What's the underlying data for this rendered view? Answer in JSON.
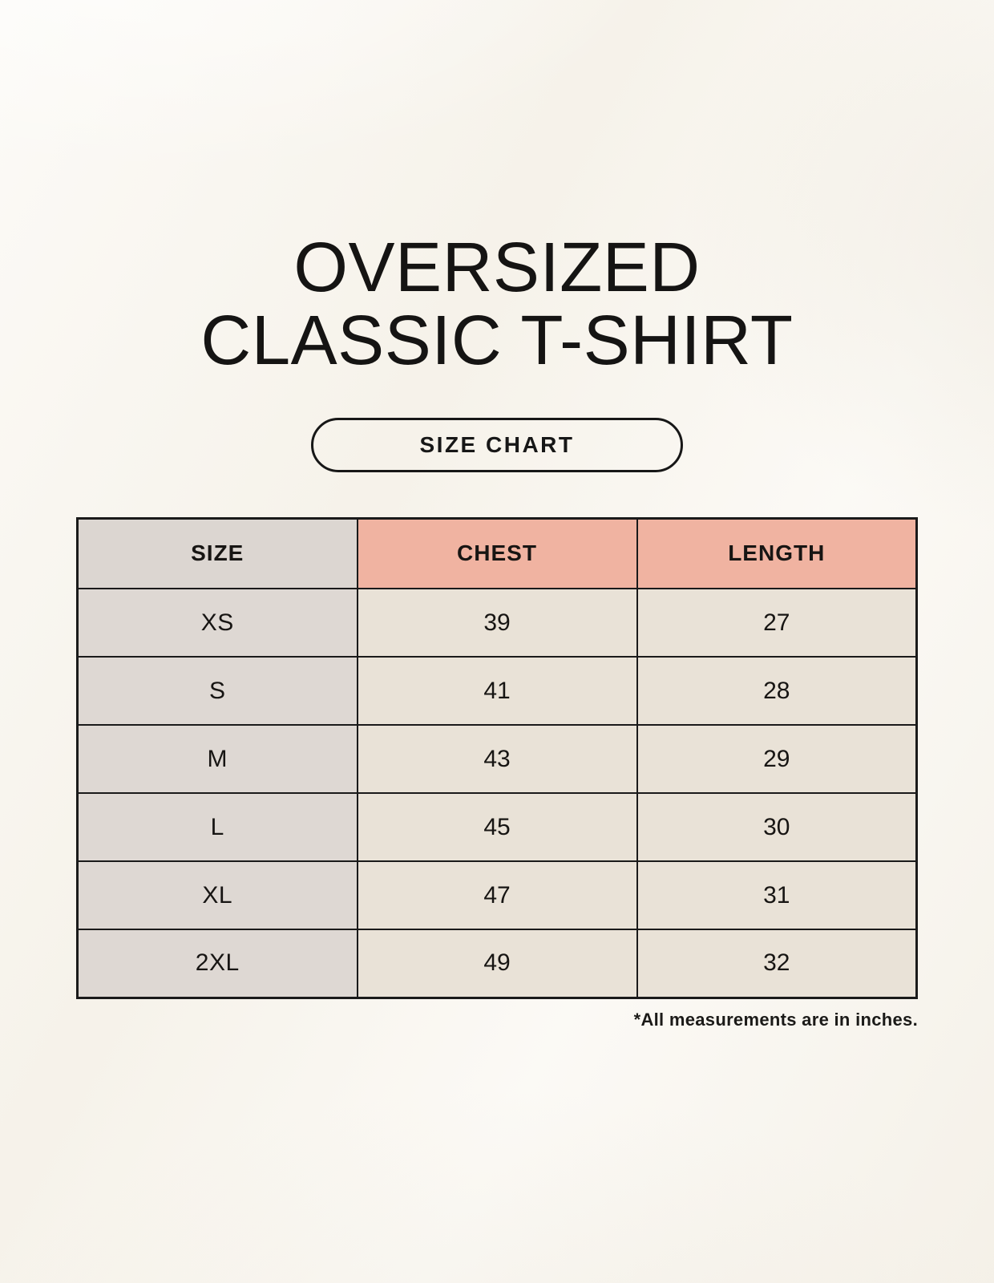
{
  "page": {
    "title_line1": "OVERSIZED",
    "title_line2": "CLASSIC T-SHIRT",
    "size_chart_label": "SIZE CHART",
    "footnote": "*All measurements are in inches."
  },
  "colors": {
    "background": "#f9f6ef",
    "header_size_bg": "#dcd6d1",
    "header_measure_bg": "#f0b3a1",
    "body_size_col_bg": "#ded8d3",
    "body_value_cell_bg": "#e9e2d7",
    "table_border": "#1a1a1a",
    "text": "#171513"
  },
  "chart_data": {
    "type": "table",
    "title": "OVERSIZED CLASSIC T-SHIRT — SIZE CHART",
    "columns": [
      "SIZE",
      "CHEST",
      "LENGTH"
    ],
    "units": "inches",
    "rows": [
      {
        "size": "XS",
        "chest": 39,
        "length": 27
      },
      {
        "size": "S",
        "chest": 41,
        "length": 28
      },
      {
        "size": "M",
        "chest": 43,
        "length": 29
      },
      {
        "size": "L",
        "chest": 45,
        "length": 30
      },
      {
        "size": "XL",
        "chest": 47,
        "length": 31
      },
      {
        "size": "2XL",
        "chest": 49,
        "length": 32
      }
    ]
  }
}
